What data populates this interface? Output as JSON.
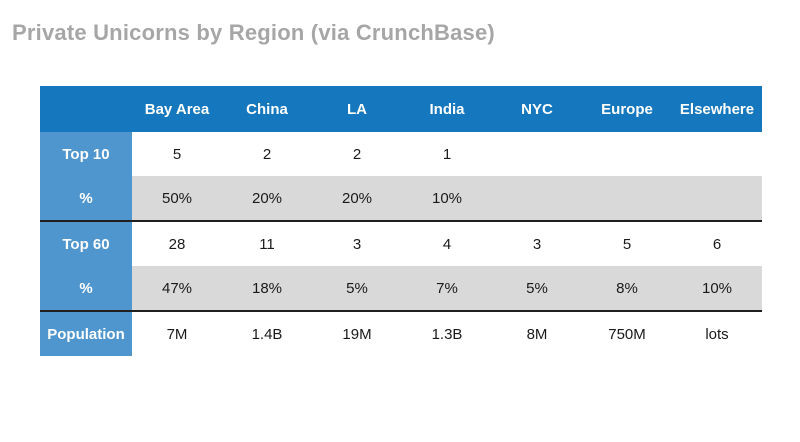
{
  "title": "Private Unicorns by Region (via CrunchBase)",
  "colors": {
    "header_bg": "#1577bd",
    "label_bg": "#4f95ce",
    "alt_row_bg": "#d9d9d9",
    "title_text": "#a6a6a6",
    "divider_line": "#1f1f1f"
  },
  "chart_data": {
    "type": "table",
    "title": "Private Unicorns by Region (via CrunchBase)",
    "columns": [
      "",
      "Bay Area",
      "China",
      "LA",
      "India",
      "NYC",
      "Europe",
      "Elsewhere"
    ],
    "rows": [
      {
        "label": "Top 10",
        "values": [
          "5",
          "2",
          "2",
          "1",
          "",
          "",
          ""
        ]
      },
      {
        "label": "%",
        "values": [
          "50%",
          "20%",
          "20%",
          "10%",
          "",
          "",
          ""
        ]
      },
      {
        "label": "Top 60",
        "values": [
          "28",
          "11",
          "3",
          "4",
          "3",
          "5",
          "6"
        ]
      },
      {
        "label": "%",
        "values": [
          "47%",
          "18%",
          "5%",
          "7%",
          "5%",
          "8%",
          "10%"
        ]
      },
      {
        "label": "Population",
        "values": [
          "7M",
          "1.4B",
          "19M",
          "1.3B",
          "8M",
          "750M",
          "lots"
        ]
      }
    ]
  }
}
